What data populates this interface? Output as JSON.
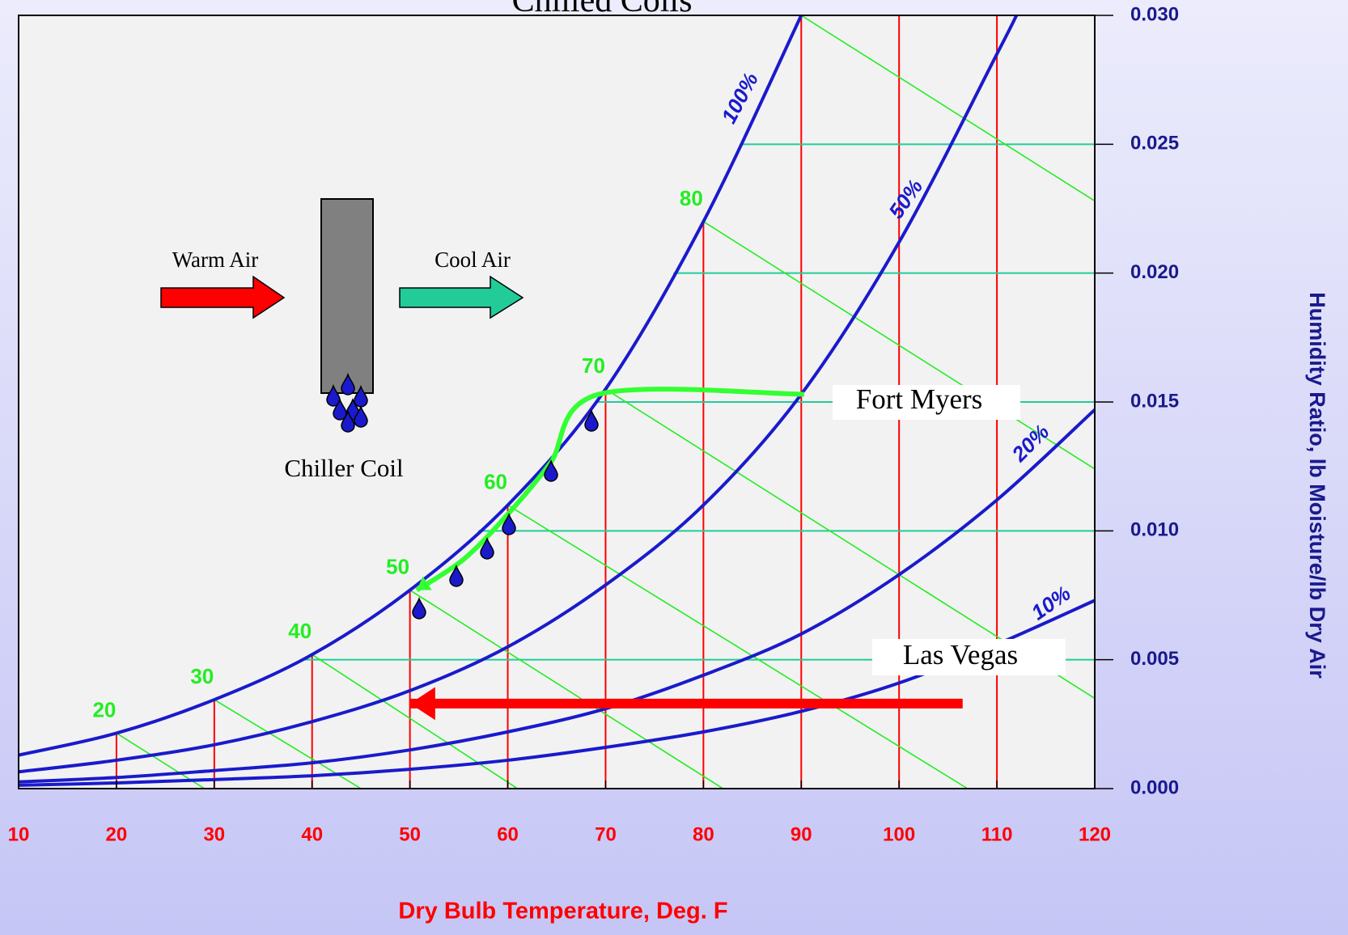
{
  "chart_data": {
    "type": "line",
    "title": "Chilled Coils",
    "x_label": "Dry Bulb Temperature, Deg. F",
    "y_label": "Humidity Ratio, lb Moisture/lb Dry Air",
    "xlim": [
      10,
      120
    ],
    "xticks": [
      10,
      20,
      30,
      40,
      50,
      60,
      70,
      80,
      90,
      100,
      110,
      120
    ],
    "ylim": [
      0,
      0.03
    ],
    "yticks": [
      {
        "value": 0,
        "label": "0.000"
      },
      0.005,
      {
        "value": 0.01,
        "label": "0.010"
      },
      0.015,
      {
        "value": 0.02,
        "label": "0.020"
      },
      0.025,
      {
        "value": 0.03,
        "label": "0.030"
      }
    ],
    "y_axis_side": "right",
    "series": [
      {
        "name": "100%",
        "color": "#1a1acc",
        "x": [
          10,
          20,
          30,
          40,
          50,
          60,
          70,
          80,
          90
        ],
        "values": [
          0.0013,
          0.00215,
          0.00345,
          0.0052,
          0.0077,
          0.011,
          0.0155,
          0.022,
          0.03
        ]
      },
      {
        "name": "50%",
        "color": "#1a1acc",
        "x": [
          10,
          20,
          30,
          40,
          50,
          60,
          70,
          80,
          90,
          100,
          110,
          112
        ],
        "values": [
          0.00065,
          0.0011,
          0.0017,
          0.0026,
          0.0038,
          0.0055,
          0.0079,
          0.011,
          0.0153,
          0.0212,
          0.0285,
          0.03
        ]
      },
      {
        "name": "20%",
        "color": "#1a1acc",
        "x": [
          10,
          20,
          30,
          40,
          50,
          60,
          70,
          80,
          90,
          100,
          110,
          120
        ],
        "values": [
          0.00026,
          0.00043,
          0.0007,
          0.001,
          0.0015,
          0.0022,
          0.0031,
          0.0044,
          0.006,
          0.0083,
          0.0112,
          0.0147
        ]
      },
      {
        "name": "10%",
        "color": "#1a1acc",
        "x": [
          10,
          20,
          30,
          40,
          50,
          60,
          70,
          80,
          90,
          100,
          110,
          120
        ],
        "values": [
          0.00013,
          0.00022,
          0.00035,
          0.0005,
          0.00075,
          0.0011,
          0.0016,
          0.0022,
          0.003,
          0.0041,
          0.0056,
          0.0073
        ]
      }
    ],
    "dew_point_color": "#ff0000",
    "humidity_line_color": "#22cc99",
    "wet_bulb_color": "#22ee22",
    "wet_bulb_lines": [
      {
        "label": "20",
        "x": [
          20,
          29
        ],
        "values": [
          0.00215,
          0
        ]
      },
      {
        "label": "30",
        "x": [
          30,
          45
        ],
        "values": [
          0.00345,
          0
        ]
      },
      {
        "label": "40",
        "x": [
          40,
          61
        ],
        "values": [
          0.0052,
          0
        ]
      },
      {
        "label": "50",
        "x": [
          50,
          82
        ],
        "values": [
          0.0077,
          0
        ]
      },
      {
        "label": "60",
        "x": [
          60,
          107
        ],
        "values": [
          0.011,
          0
        ]
      },
      {
        "label": "70",
        "x": [
          70,
          120
        ],
        "values": [
          0.0155,
          0.0035
        ]
      },
      {
        "label": "80",
        "x": [
          80,
          120
        ],
        "values": [
          0.022,
          0.0124
        ]
      },
      {
        "label": null,
        "x": [
          90,
          120
        ],
        "values": [
          0.03,
          0.0228
        ]
      }
    ],
    "processes": [
      {
        "name": "Fort Myers",
        "color": "#33ff33",
        "x": [
          90.3,
          69.3,
          64.3,
          59.9,
          55.5,
          50.7
        ],
        "values": [
          0.0153,
          0.0153,
          0.0126,
          0.0106,
          0.0089,
          0.0077
        ]
      },
      {
        "name": "Las Vegas",
        "color": "#ff0000",
        "x": [
          106.5,
          50
        ],
        "values": [
          0.0033,
          0.0033
        ]
      }
    ],
    "diagram": {
      "inlet": "Warm Air",
      "outlet": "Cool Air",
      "coil": "Chiller Coil"
    }
  }
}
